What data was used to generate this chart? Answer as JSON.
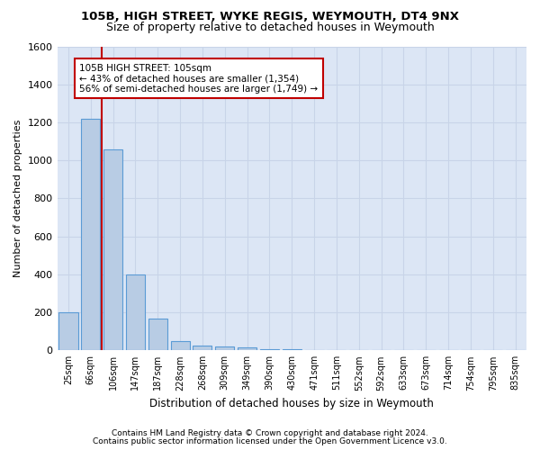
{
  "title1": "105B, HIGH STREET, WYKE REGIS, WEYMOUTH, DT4 9NX",
  "title2": "Size of property relative to detached houses in Weymouth",
  "xlabel": "Distribution of detached houses by size in Weymouth",
  "ylabel": "Number of detached properties",
  "categories": [
    "25sqm",
    "66sqm",
    "106sqm",
    "147sqm",
    "187sqm",
    "228sqm",
    "268sqm",
    "309sqm",
    "349sqm",
    "390sqm",
    "430sqm",
    "471sqm",
    "511sqm",
    "552sqm",
    "592sqm",
    "633sqm",
    "673sqm",
    "714sqm",
    "754sqm",
    "795sqm",
    "835sqm"
  ],
  "values": [
    200,
    1220,
    1060,
    400,
    165,
    50,
    25,
    20,
    15,
    5,
    5,
    3,
    2,
    1,
    1,
    0,
    0,
    0,
    0,
    0,
    0
  ],
  "bar_color": "#b8cce4",
  "bar_edge_color": "#5b9bd5",
  "vline_x": 2,
  "vline_color": "#c00000",
  "annotation_text": "105B HIGH STREET: 105sqm\n← 43% of detached houses are smaller (1,354)\n56% of semi-detached houses are larger (1,749) →",
  "annotation_box_color": "#ffffff",
  "annotation_box_edge": "#c00000",
  "ylim": [
    0,
    1600
  ],
  "yticks": [
    0,
    200,
    400,
    600,
    800,
    1000,
    1200,
    1400,
    1600
  ],
  "grid_color": "#c8d4e8",
  "bg_color": "#dce6f5",
  "fig_bg_color": "#ffffff",
  "footer1": "Contains HM Land Registry data © Crown copyright and database right 2024.",
  "footer2": "Contains public sector information licensed under the Open Government Licence v3.0."
}
